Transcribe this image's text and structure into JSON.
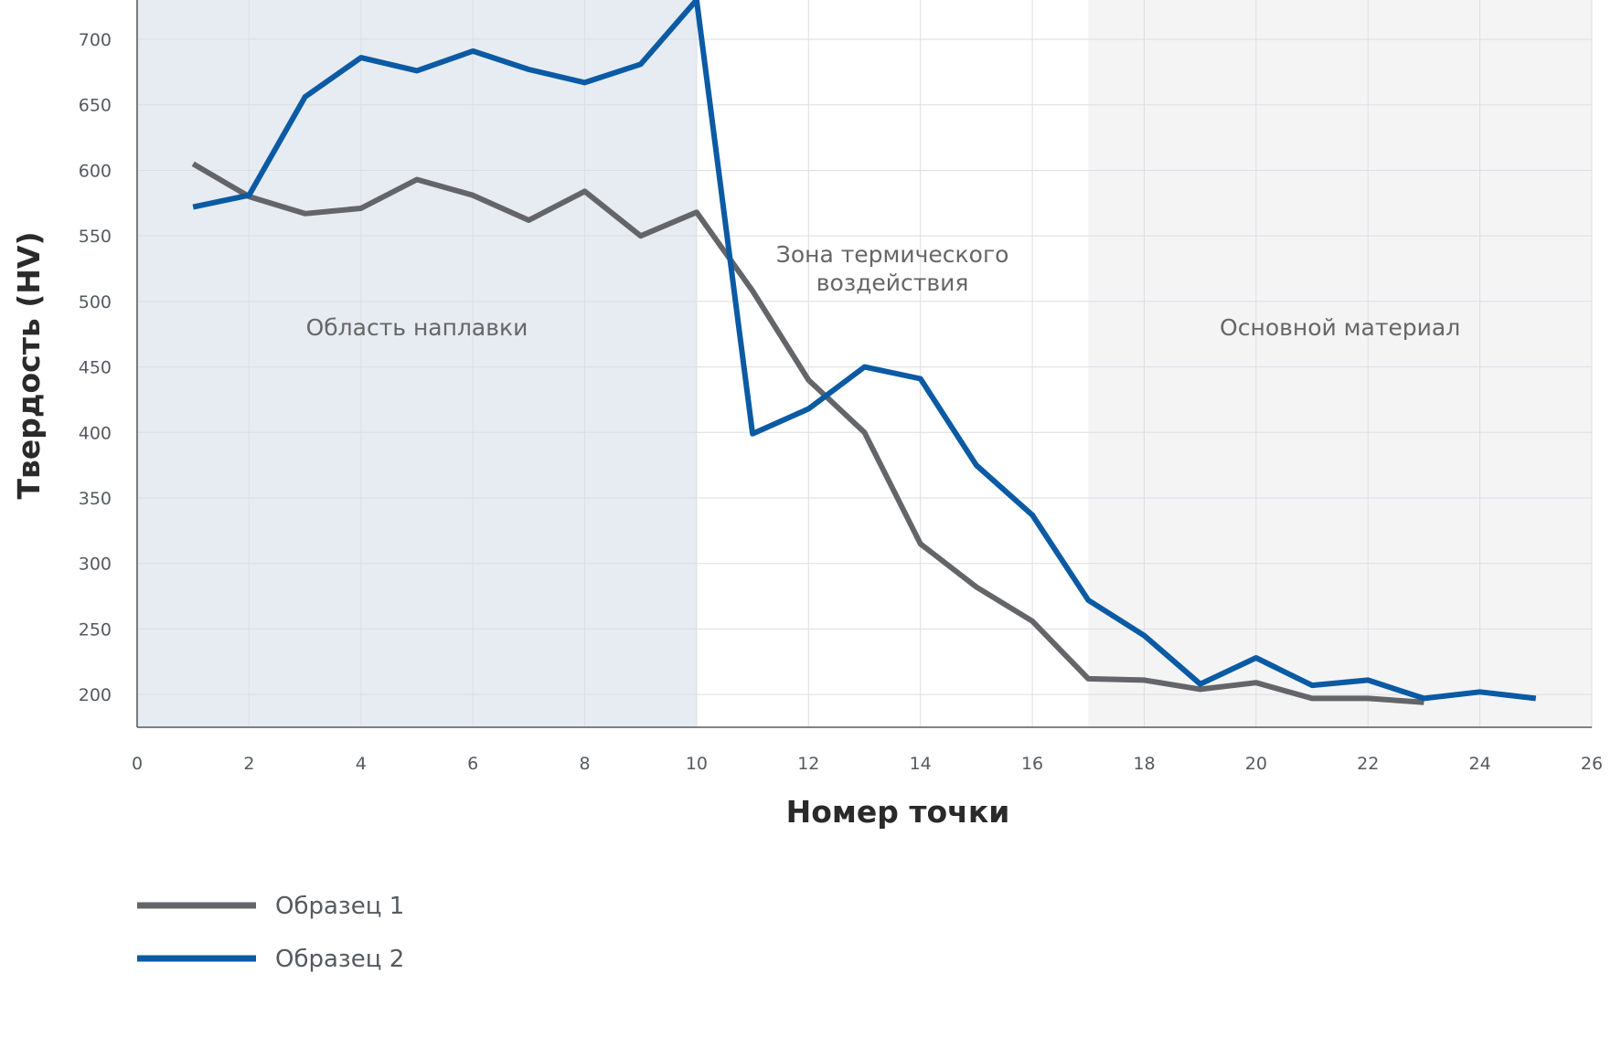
{
  "chart_data": {
    "type": "line",
    "xlabel": "Номер точки",
    "ylabel": "Твердость (HV)",
    "xlim": [
      0,
      26
    ],
    "ylim": [
      175,
      730
    ],
    "x_ticks": [
      0,
      2,
      4,
      6,
      8,
      10,
      12,
      14,
      16,
      18,
      20,
      22,
      24,
      26
    ],
    "y_ticks": [
      200,
      250,
      300,
      350,
      400,
      450,
      500,
      550,
      600,
      650,
      700
    ],
    "grid": true,
    "legend_position": "bottom-left",
    "regions": [
      {
        "label_lines": [
          "Область наплавки"
        ],
        "x_range": [
          0,
          10
        ],
        "color": "#e6ecf2"
      },
      {
        "label_lines": [
          "Зона термического",
          "воздействия"
        ],
        "x_range": [
          10,
          17
        ],
        "color": "#ffffff"
      },
      {
        "label_lines": [
          "Основной материал"
        ],
        "x_range": [
          17,
          26
        ],
        "color": "#f4f4f5"
      }
    ],
    "series": [
      {
        "name": "Образец 1",
        "color": "#646568",
        "x": [
          1,
          2,
          3,
          4,
          5,
          6,
          7,
          8,
          9,
          10,
          11,
          12,
          13,
          14,
          15,
          16,
          17,
          18,
          19,
          20,
          21,
          22,
          23
        ],
        "values": [
          605,
          580,
          567,
          571,
          593,
          581,
          562,
          584,
          550,
          568,
          508,
          440,
          400,
          315,
          282,
          256,
          212,
          211,
          204,
          209,
          197,
          197,
          194
        ]
      },
      {
        "name": "Образец 2",
        "color": "#0a5aa4",
        "x": [
          1,
          2,
          3,
          4,
          5,
          6,
          7,
          8,
          9,
          10,
          11,
          12,
          13,
          14,
          15,
          16,
          17,
          18,
          19,
          20,
          21,
          22,
          23,
          24,
          25
        ],
        "values": [
          572,
          581,
          656,
          686,
          676,
          691,
          677,
          667,
          681,
          730,
          399,
          418,
          450,
          441,
          375,
          337,
          272,
          245,
          208,
          228,
          207,
          211,
          197,
          202,
          197
        ]
      }
    ]
  }
}
